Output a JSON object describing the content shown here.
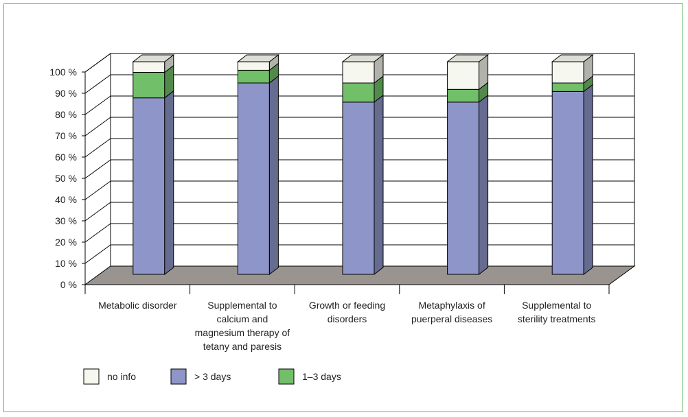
{
  "chart_data": {
    "type": "bar",
    "stacked": true,
    "three_d": true,
    "categories": [
      "Metabolic disorder",
      "Supplemental to calcium and magnesium therapy of tetany and paresis",
      "Growth or feeding disorders",
      "Metaphylaxis of puerperal diseases",
      "Supplemental to sterility treatments"
    ],
    "category_lines": [
      [
        "Metabolic disorder"
      ],
      [
        "Supplemental to",
        "calcium and",
        "magnesium therapy of",
        "tetany and paresis"
      ],
      [
        "Growth or feeding",
        "disorders"
      ],
      [
        "Metaphylaxis of",
        "puerperal diseases"
      ],
      [
        "Supplemental to",
        "sterility treatments"
      ]
    ],
    "series": [
      {
        "name": "> 3 days",
        "color": "#8e95c8",
        "values": [
          83,
          90,
          81,
          81,
          86
        ]
      },
      {
        "name": "1–3 days",
        "color": "#72bf69",
        "values": [
          12,
          6,
          9,
          6,
          4
        ]
      },
      {
        "name": "no info",
        "color": "#f6f7ee",
        "values": [
          5,
          4,
          10,
          13,
          10
        ]
      }
    ],
    "legend_order": [
      "no info",
      "> 3 days",
      "1–3 days"
    ],
    "ylim": [
      0,
      100
    ],
    "yticks": [
      "0 %",
      "10 %",
      "20 %",
      "30 %",
      "40 %",
      "50 %",
      "60 %",
      "70 %",
      "80 %",
      "90 %",
      "100 %"
    ],
    "legend_placement": "bottom-left",
    "grid": true,
    "floor_color": "#9a9490"
  }
}
